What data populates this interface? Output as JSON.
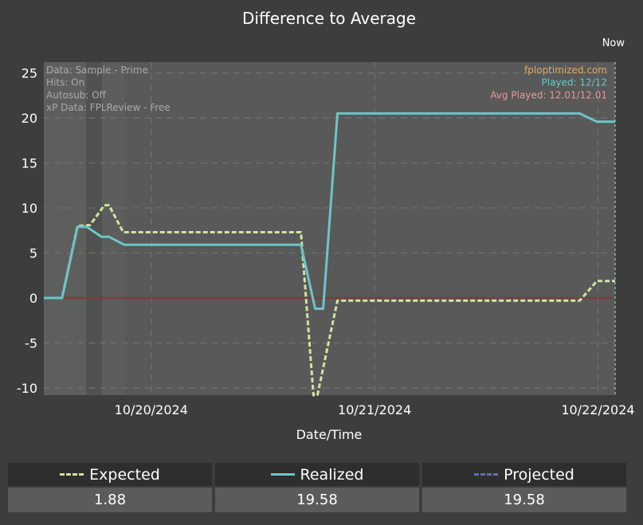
{
  "chart_data": {
    "type": "line",
    "title": "Difference to Average",
    "xlabel": "Date/Time",
    "ylabel": "",
    "ylim": [
      -10.8,
      26.2
    ],
    "yticks": [
      -10,
      -5,
      0,
      5,
      10,
      15,
      20,
      25
    ],
    "xlim": [
      0,
      1
    ],
    "xticks": [
      {
        "label": "10/20/2024",
        "x": 0.188
      },
      {
        "label": "10/21/2024",
        "x": 0.579
      },
      {
        "label": "10/22/2024",
        "x": 0.97
      }
    ],
    "now_label": "Now",
    "grid": true,
    "series": [
      {
        "name": "Expected",
        "color": "#cfe5a0",
        "dash": true,
        "x": [
          0,
          0.032,
          0.059,
          0.081,
          0.106,
          0.114,
          0.139,
          0.45,
          0.472,
          0.479,
          0.514,
          0.938,
          0.968,
          1.0
        ],
        "y": [
          0,
          0,
          8.0,
          8.1,
          10.3,
          10.3,
          7.3,
          7.3,
          -10.8,
          -10.8,
          -0.3,
          -0.3,
          1.88,
          1.88
        ]
      },
      {
        "name": "Realized",
        "color": "#6cc5c8",
        "dash": false,
        "x": [
          0,
          0.032,
          0.059,
          0.075,
          0.101,
          0.114,
          0.141,
          0.45,
          0.475,
          0.489,
          0.514,
          0.938,
          0.968,
          1.0
        ],
        "y": [
          0,
          0,
          7.9,
          7.9,
          6.8,
          6.8,
          5.9,
          5.9,
          -1.2,
          -1.2,
          20.5,
          20.5,
          19.58,
          19.58
        ]
      },
      {
        "name": "Projected",
        "color": "#5a6fb0",
        "dash": true,
        "x": [],
        "y": []
      }
    ],
    "annotations": {
      "top_left": [
        "Data: Sample - Prime",
        "Hits: On",
        "Autosub: Off",
        "xP Data: FPLReview - Free"
      ],
      "top_right": [
        {
          "text": "fploptimized.com",
          "color": "#e0a868"
        },
        {
          "text": "Played: 12/12",
          "color": "#6cc5c8"
        },
        {
          "text": "Avg Played: 12.01/12.01",
          "color": "#e79a9a"
        }
      ]
    }
  },
  "summary": [
    {
      "label": "Expected",
      "value": "1.88",
      "color": "#cfe5a0",
      "style": "dashed"
    },
    {
      "label": "Realized",
      "value": "19.58",
      "color": "#6cc5c8",
      "style": "solid"
    },
    {
      "label": "Projected",
      "value": "19.58",
      "color": "#5a6fb0",
      "style": "dashed"
    }
  ]
}
